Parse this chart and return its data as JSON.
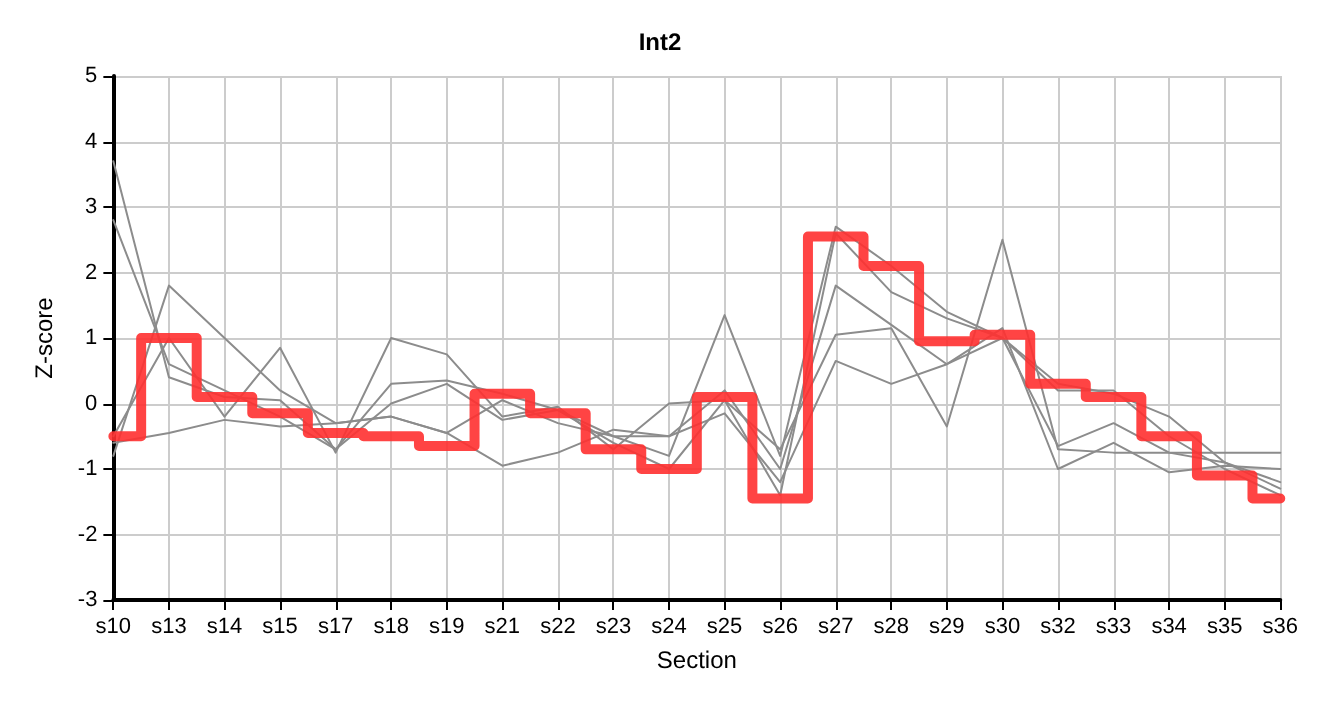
{
  "chart_data": {
    "type": "line",
    "title": "Int2",
    "xlabel": "Section",
    "ylabel": "Z-score",
    "categories": [
      "s10",
      "s13",
      "s14",
      "s15",
      "s17",
      "s18",
      "s19",
      "s21",
      "s22",
      "s23",
      "s24",
      "s25",
      "s26",
      "s27",
      "s28",
      "s29",
      "s30",
      "s32",
      "s33",
      "s34",
      "s35",
      "s36"
    ],
    "series": [
      {
        "color": "#8c8c8c",
        "values": [
          3.7,
          0.4,
          0.1,
          0.05,
          -0.7,
          0.3,
          0.35,
          0.15,
          -0.1,
          -0.5,
          -0.8,
          1.35,
          -0.8,
          2.7,
          2.1,
          1.4,
          1.0,
          0.3,
          0.15,
          -0.2,
          -0.9,
          -1.3
        ]
      },
      {
        "color": "#8c8c8c",
        "values": [
          2.8,
          0.6,
          0.2,
          -0.2,
          -0.7,
          0.0,
          0.3,
          -0.25,
          -0.1,
          -0.6,
          -1.0,
          0.05,
          -1.4,
          2.6,
          1.7,
          1.3,
          1.0,
          0.2,
          0.2,
          -0.5,
          -1.0,
          -1.4
        ]
      },
      {
        "color": "#8c8c8c",
        "values": [
          -0.8,
          1.8,
          1.0,
          0.2,
          -0.3,
          -0.2,
          -0.45,
          0.05,
          -0.3,
          -0.5,
          -0.5,
          0.2,
          -1.0,
          1.8,
          1.2,
          0.6,
          1.0,
          -0.65,
          -0.3,
          -0.75,
          -0.9,
          -1.2
        ]
      },
      {
        "color": "#8c8c8c",
        "values": [
          -0.5,
          1.0,
          -0.2,
          0.85,
          -0.75,
          1.0,
          0.75,
          -0.2,
          -0.05,
          -0.7,
          0.0,
          0.05,
          -0.7,
          1.05,
          1.15,
          -0.35,
          2.5,
          -0.7,
          -0.75,
          -0.75,
          -0.75,
          -0.75
        ]
      },
      {
        "color": "#8c8c8c",
        "values": [
          -0.6,
          -0.45,
          -0.25,
          -0.35,
          -0.3,
          -0.2,
          -0.45,
          -0.95,
          -0.75,
          -0.4,
          -0.5,
          -0.15,
          -1.2,
          0.65,
          0.3,
          0.6,
          1.15,
          -1.0,
          -0.6,
          -1.05,
          -0.95,
          -1.0
        ]
      },
      {
        "type": "step",
        "color": "#ff3030",
        "values": [
          -0.5,
          1.0,
          0.1,
          -0.15,
          -0.45,
          -0.5,
          -0.65,
          0.15,
          -0.15,
          -0.7,
          -1.0,
          0.1,
          -1.45,
          2.55,
          2.1,
          0.95,
          1.05,
          0.3,
          0.1,
          -0.5,
          -1.1,
          -1.45
        ]
      }
    ],
    "ylim": [
      -3,
      5
    ],
    "yticks": [
      -3,
      -2,
      -1,
      0,
      1,
      2,
      3,
      4,
      5
    ],
    "grid": true,
    "marker": "none",
    "line_style": "solid"
  }
}
